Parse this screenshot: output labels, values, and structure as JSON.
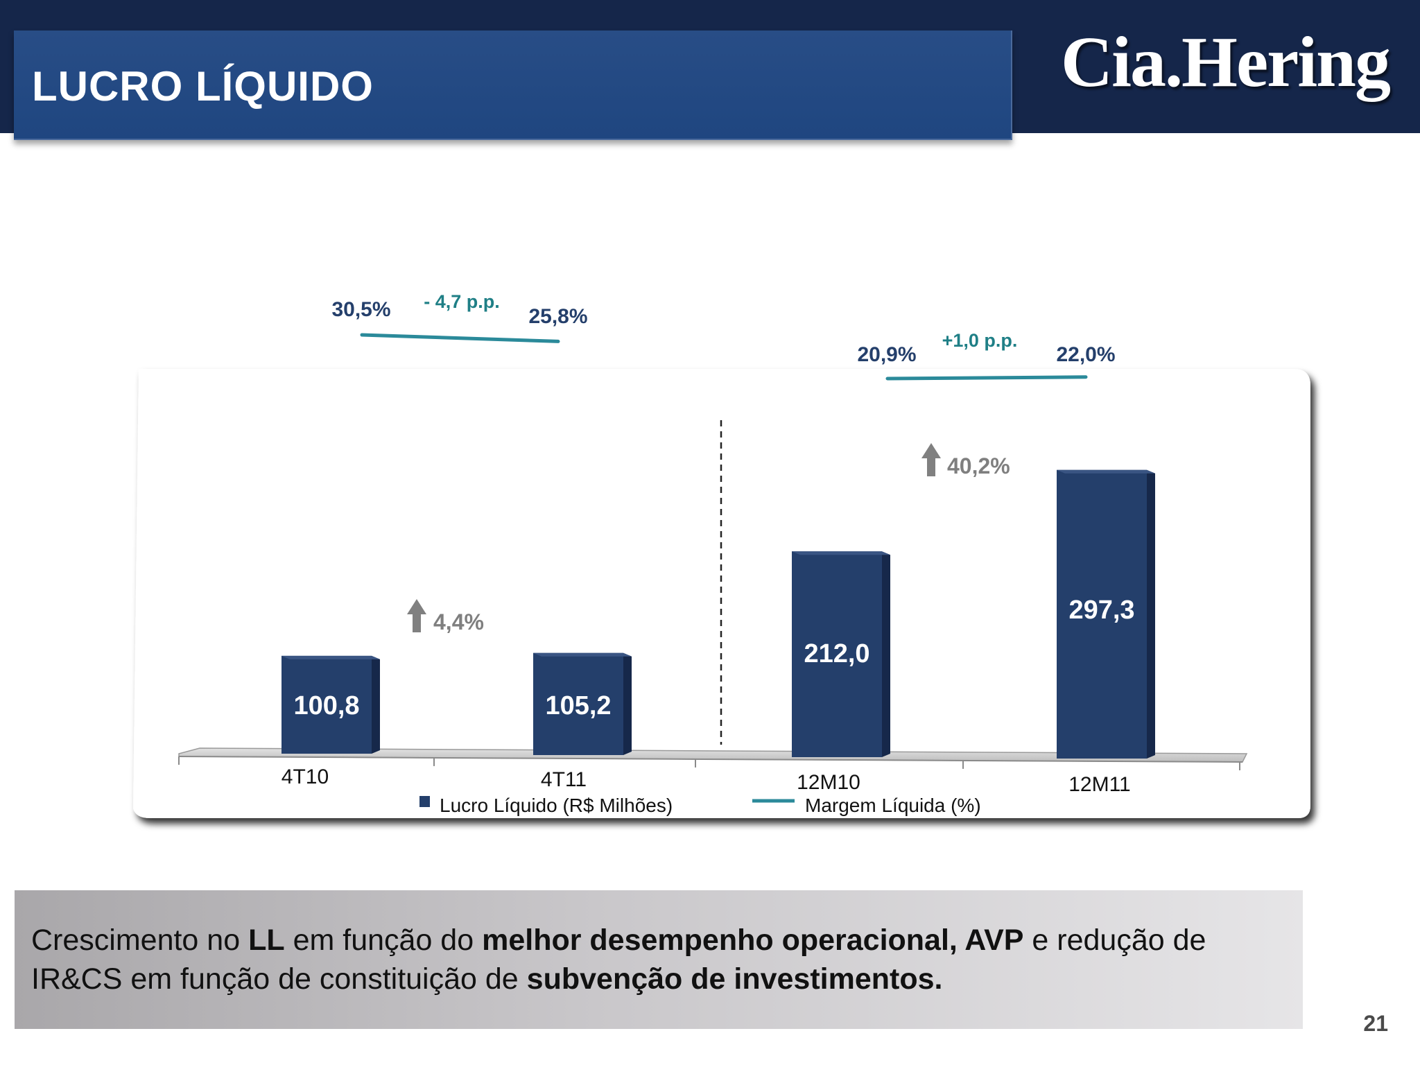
{
  "header": {
    "title": "LUCRO LÍQUIDO",
    "brand": "Cia.Hering"
  },
  "colors": {
    "bar": "#243f6b",
    "margin_line": "#2b8a9a",
    "navy": "#15264a",
    "arrow": "#808080"
  },
  "chart_data": {
    "type": "bar",
    "categories": [
      "4T10",
      "4T11",
      "12M10",
      "12M11"
    ],
    "series": [
      {
        "name": "Lucro Líquido (R$ Milhões)",
        "type": "bar",
        "values": [
          100.8,
          105.2,
          212.0,
          297.3
        ],
        "labels": [
          "100,8",
          "105,2",
          "212,0",
          "297,3"
        ]
      },
      {
        "name": "Margem Líquida (%)",
        "type": "line",
        "values": [
          30.5,
          25.8,
          20.9,
          22.0
        ],
        "labels": [
          "30,5%",
          "25,8%",
          "20,9%",
          "22,0%"
        ]
      }
    ],
    "annotations": {
      "quarter_growth": "4,4%",
      "annual_growth": "40,2%",
      "quarter_margin_change": "- 4,7 p.p.",
      "annual_margin_change": "+1,0 p.p."
    },
    "legend_position": "bottom"
  },
  "caption": {
    "t1": "Crescimento  no ",
    "b1": "LL",
    "t2": " em função do ",
    "b2": "melhor desempenho operacional, AVP",
    "t3": " e redução de IR&CS em função de constituição de ",
    "b3": "subvenção de investimentos."
  },
  "page_number": "21"
}
